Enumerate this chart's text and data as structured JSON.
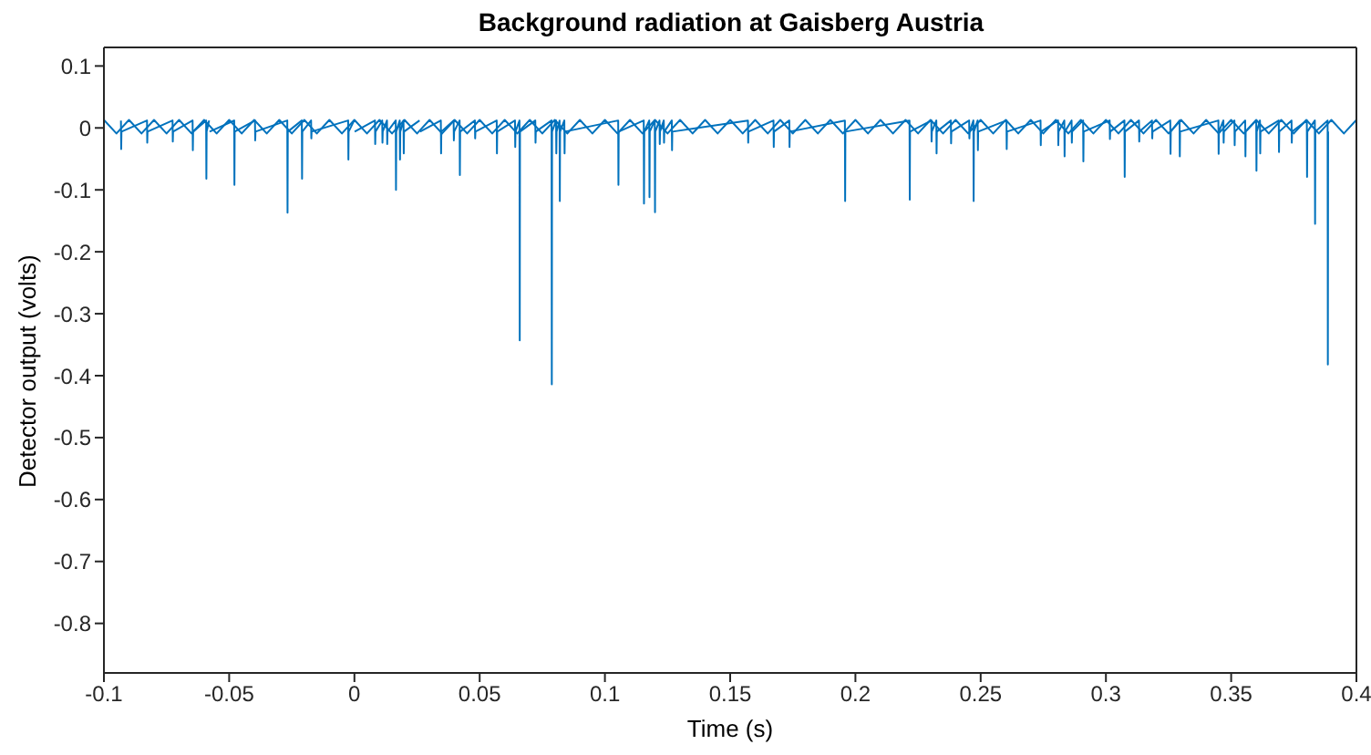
{
  "chart_data": {
    "type": "line",
    "title": "Background radiation at Gaisberg Austria",
    "xlabel": "Time (s)",
    "ylabel": "Detector output (volts)",
    "xlim": [
      -0.1,
      0.4
    ],
    "ylim": [
      -0.88,
      0.13
    ],
    "xticks": [
      -0.1,
      -0.05,
      0,
      0.05,
      0.1,
      0.15,
      0.2,
      0.25,
      0.3,
      0.35,
      0.4
    ],
    "yticks": [
      -0.8,
      -0.7,
      -0.6,
      -0.5,
      -0.4,
      -0.3,
      -0.2,
      -0.1,
      0,
      0.1
    ],
    "marker": "none",
    "line_style": "solid",
    "series": [
      {
        "color": "#0072bd",
        "x": [
          -0.1,
          -0.095,
          -0.09,
          -0.085,
          -0.08,
          -0.075,
          -0.07,
          -0.065,
          -0.06,
          -0.055,
          -0.05,
          -0.045,
          -0.04,
          -0.035,
          -0.03,
          -0.025,
          -0.02,
          -0.015,
          -0.01,
          -0.005,
          0,
          0.005,
          0.01,
          0.015,
          0.02,
          0.025,
          0.03,
          0.035,
          0.04,
          0.045,
          0.05,
          0.055,
          0.06,
          0.065,
          0.07,
          0.075,
          0.08,
          0.085,
          0.09,
          0.095,
          0.1,
          0.105,
          0.11,
          0.115,
          0.12,
          0.125,
          0.13,
          0.135,
          0.14,
          0.145,
          0.15,
          0.155,
          0.16,
          0.165,
          0.17,
          0.175,
          0.18,
          0.185,
          0.19,
          0.195,
          0.2,
          0.205,
          0.21,
          0.215,
          0.22,
          0.225,
          0.23,
          0.235,
          0.24,
          0.245,
          0.25,
          0.255,
          0.26,
          0.265,
          0.27,
          0.275,
          0.28,
          0.285,
          0.29,
          0.295,
          0.3,
          0.305,
          0.31,
          0.315,
          0.32,
          0.325,
          0.33,
          0.335,
          0.34,
          0.345,
          0.35,
          0.355,
          0.36,
          0.365,
          0.37,
          0.375,
          0.38,
          0.385,
          0.39,
          0.395,
          0.4
        ],
        "values": [
          0.013,
          -0.009,
          0.013,
          -0.009,
          0.013,
          -0.009,
          0.013,
          -0.009,
          0.013,
          -0.009,
          0.013,
          -0.009,
          0.013,
          -0.009,
          0.013,
          -0.009,
          0.013,
          -0.009,
          0.013,
          -0.009,
          0.013,
          -0.009,
          0.013,
          -0.009,
          0.013,
          -0.009,
          0.013,
          -0.009,
          0.013,
          -0.009,
          0.013,
          -0.009,
          0.013,
          -0.009,
          0.013,
          -0.009,
          0.013,
          -0.009,
          0.013,
          -0.009,
          0.013,
          -0.009,
          0.013,
          -0.009,
          0.013,
          -0.009,
          0.013,
          -0.009,
          0.013,
          -0.009,
          0.013,
          -0.009,
          0.013,
          -0.009,
          0.013,
          -0.009,
          0.013,
          -0.009,
          0.013,
          -0.009,
          0.013,
          -0.009,
          0.013,
          -0.009,
          0.013,
          -0.009,
          0.013,
          -0.009,
          0.013,
          -0.009,
          0.013,
          -0.009,
          0.013,
          -0.009,
          0.013,
          -0.009,
          0.013,
          -0.009,
          0.013,
          -0.009,
          0.013,
          -0.009,
          0.013,
          -0.009,
          0.013,
          -0.009,
          0.013,
          -0.009,
          0.013,
          -0.009,
          0.013,
          -0.009,
          0.013,
          -0.009,
          0.013,
          -0.009,
          0.013,
          -0.009,
          0.013,
          -0.009,
          0.013
        ]
      },
      {
        "color": "#0072bd",
        "x": [
          -0.0932,
          -0.0931,
          -0.093,
          -0.0828,
          -0.0827,
          -0.0826,
          -0.0726,
          -0.0725,
          -0.0724,
          -0.0646,
          -0.0645,
          -0.0644,
          -0.0592,
          -0.0591,
          -0.059,
          -0.058,
          -0.0579,
          -0.0578,
          -0.048,
          -0.0479,
          -0.0478,
          -0.0397,
          -0.0396,
          -0.0395,
          -0.0268,
          -0.0267,
          -0.0266,
          -0.021,
          -0.0209,
          -0.0208,
          -0.0173,
          -0.0172,
          -0.0171,
          -0.0025,
          -0.0024,
          -0.0023,
          -0.0001,
          0,
          0.0001,
          0.0082,
          0.0083,
          0.0084,
          0.0111,
          0.0112,
          0.0113,
          0.013,
          0.0131,
          0.0132,
          0.0165,
          0.0166,
          0.0167,
          0.0181,
          0.0182,
          0.0183,
          0.0196,
          0.0197,
          0.0198,
          0.026,
          0.0261,
          0.0262,
          0.0345,
          0.0346,
          0.0347,
          0.0396,
          0.0397,
          0.0398,
          0.042,
          0.0421,
          0.0422,
          0.0481,
          0.0482,
          0.0483,
          0.0568,
          0.0569,
          0.057,
          0.0641,
          0.0642,
          0.0643,
          0.0659,
          0.066,
          0.0661,
          0.0722,
          0.0723,
          0.0724,
          0.0787,
          0.0788,
          0.0789,
          0.0805,
          0.0806,
          0.0807,
          0.0819,
          0.082,
          0.0821,
          0.0838,
          0.0839,
          0.084,
          0.1053,
          0.1054,
          0.1055,
          0.1155,
          0.1156,
          0.1157,
          0.1177,
          0.1178,
          0.1179,
          0.1199,
          0.12,
          0.1201,
          0.1218,
          0.1219,
          0.122,
          0.1235,
          0.1236,
          0.1237,
          0.1267,
          0.1268,
          0.1269,
          0.1571,
          0.1572,
          0.1573,
          0.1673,
          0.1674,
          0.1675,
          0.1736,
          0.1737,
          0.1738,
          0.1958,
          0.1959,
          0.196,
          0.2216,
          0.2217,
          0.2218,
          0.2303,
          0.2304,
          0.2305,
          0.2323,
          0.2324,
          0.2325,
          0.2381,
          0.2382,
          0.2383,
          0.2454,
          0.2455,
          0.2456,
          0.2471,
          0.2472,
          0.2473,
          0.2488,
          0.2489,
          0.249,
          0.2603,
          0.2604,
          0.2605,
          0.2739,
          0.274,
          0.2741,
          0.2809,
          0.281,
          0.2811,
          0.2834,
          0.2835,
          0.2836,
          0.2863,
          0.2864,
          0.2865,
          0.2909,
          0.291,
          0.2911,
          0.3015,
          0.3016,
          0.3017,
          0.3074,
          0.3075,
          0.3076,
          0.3132,
          0.3133,
          0.3134,
          0.3184,
          0.3185,
          0.3186,
          0.3257,
          0.3258,
          0.3259,
          0.3294,
          0.3295,
          0.3296,
          0.3449,
          0.345,
          0.3451,
          0.3469,
          0.347,
          0.3471,
          0.3513,
          0.3514,
          0.3515,
          0.3556,
          0.3557,
          0.3558,
          0.36,
          0.3601,
          0.3602,
          0.3615,
          0.3616,
          0.3617,
          0.369,
          0.3691,
          0.3692,
          0.3741,
          0.3742,
          0.3743,
          0.3802,
          0.3803,
          0.3804,
          0.3834,
          0.3835,
          0.3836,
          0.3885,
          0.3886,
          0.3887
        ],
        "values": [
          0.012,
          -0.034,
          -0.006,
          0.012,
          -0.024,
          -0.006,
          0.012,
          -0.022,
          -0.006,
          0.012,
          -0.036,
          -0.006,
          0.012,
          -0.082,
          -0.006,
          0.012,
          null,
          -0.006,
          0.012,
          -0.092,
          -0.006,
          0.012,
          -0.02,
          -0.006,
          0.012,
          -0.137,
          -0.006,
          0.012,
          -0.082,
          -0.006,
          0.012,
          -0.017,
          -0.006,
          0.012,
          -0.051,
          -0.006,
          0.012,
          null,
          -0.006,
          0.012,
          -0.026,
          -0.006,
          0.012,
          -0.024,
          -0.006,
          0.012,
          -0.026,
          -0.006,
          0.012,
          -0.1,
          -0.006,
          0.012,
          -0.051,
          -0.006,
          0.012,
          -0.041,
          -0.006,
          0.012,
          null,
          -0.006,
          0.012,
          -0.041,
          -0.006,
          0.012,
          -0.02,
          -0.006,
          0.012,
          -0.076,
          -0.006,
          0.012,
          -0.017,
          -0.006,
          0.012,
          -0.041,
          -0.006,
          0.012,
          -0.031,
          -0.006,
          0.012,
          -0.343,
          -0.006,
          0.012,
          -0.024,
          -0.006,
          0.012,
          -0.414,
          -0.006,
          0.012,
          -0.041,
          -0.006,
          0.012,
          -0.118,
          -0.006,
          0.012,
          -0.041,
          -0.006,
          0.012,
          -0.092,
          -0.006,
          0.012,
          -0.122,
          -0.006,
          0.012,
          -0.112,
          -0.006,
          0.012,
          -0.136,
          -0.006,
          0.012,
          -0.026,
          -0.006,
          0.012,
          -0.024,
          -0.006,
          0.012,
          -0.036,
          -0.006,
          0.012,
          -0.024,
          -0.006,
          0.012,
          -0.031,
          -0.006,
          0.012,
          -0.031,
          -0.006,
          0.012,
          -0.118,
          -0.006,
          0.012,
          -0.116,
          -0.006,
          0.012,
          -0.022,
          -0.006,
          0.012,
          -0.041,
          -0.006,
          0.012,
          -0.025,
          -0.006,
          0.012,
          -0.017,
          -0.006,
          0.012,
          -0.118,
          -0.006,
          0.012,
          -0.036,
          -0.006,
          0.012,
          -0.034,
          -0.006,
          0.012,
          -0.028,
          -0.006,
          0.012,
          -0.028,
          -0.006,
          0.012,
          -0.046,
          -0.006,
          0.012,
          -0.024,
          -0.006,
          0.012,
          -0.054,
          -0.006,
          0.012,
          -0.018,
          -0.006,
          0.012,
          -0.079,
          -0.006,
          0.012,
          -0.022,
          -0.006,
          0.012,
          -0.017,
          -0.006,
          0.012,
          -0.042,
          -0.006,
          0.012,
          -0.046,
          -0.006,
          0.012,
          -0.042,
          -0.006,
          0.012,
          -0.024,
          -0.006,
          0.012,
          -0.028,
          -0.006,
          0.012,
          -0.046,
          -0.006,
          0.012,
          -0.069,
          -0.006,
          0.012,
          -0.041,
          -0.006,
          0.012,
          -0.039,
          -0.006,
          0.012,
          -0.024,
          -0.006,
          0.012,
          -0.079,
          -0.006,
          0.012,
          -0.155,
          -0.006,
          0.012,
          -0.382,
          -0.006
        ]
      }
    ]
  }
}
